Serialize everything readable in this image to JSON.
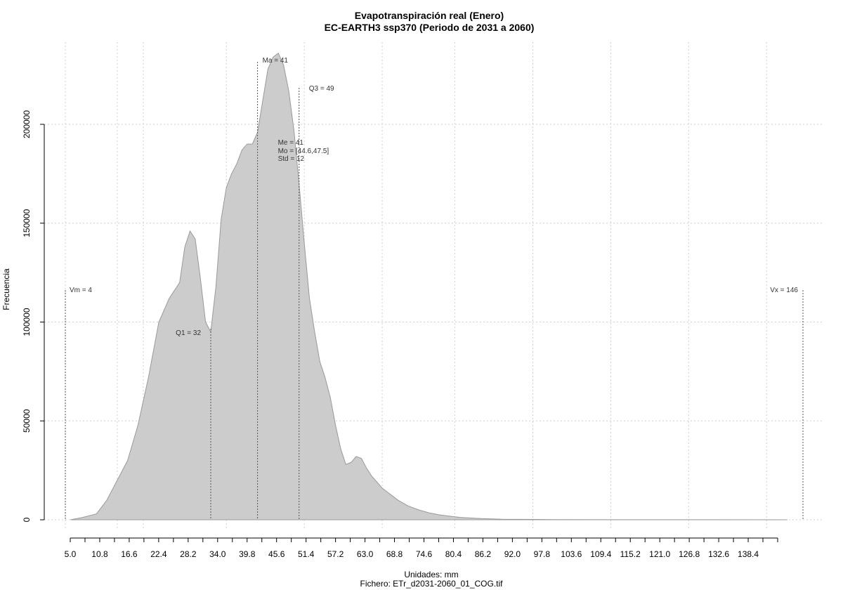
{
  "chart_data": {
    "type": "area",
    "title": "Evapotranspiración real (Enero)",
    "subtitle": "EC-EARTH3 ssp370 (Periodo de 2031 a 2060)",
    "xlabel": "Unidades: mm",
    "ylabel": "Frecuencia",
    "caption": "Fichero: ETr_d2031-2060_01_COG.tif",
    "xlim": [
      4,
      146
    ],
    "ylim": [
      0,
      230000
    ],
    "grid": true,
    "fill_color": "#cccccc",
    "line_color": "#999999",
    "x_tick_labels": [
      "5.0",
      "10.8",
      "16.6",
      "22.4",
      "28.2",
      "34.0",
      "39.8",
      "45.6",
      "51.4",
      "57.2",
      "63.0",
      "68.8",
      "74.6",
      "80.4",
      "86.2",
      "92.0",
      "97.8",
      "103.6",
      "109.4",
      "115.2",
      "121.0",
      "126.8",
      "132.6",
      "138.4"
    ],
    "y_ticks": [
      0,
      50000,
      100000,
      150000,
      200000
    ],
    "y_tick_labels": [
      "0",
      "50000",
      "100000",
      "150000",
      "200000"
    ],
    "x": [
      5,
      7,
      10,
      12,
      14,
      16,
      18,
      20,
      22,
      24,
      26,
      27,
      28,
      29,
      30,
      31,
      32,
      33,
      34,
      35,
      36,
      37,
      38,
      39,
      40,
      41,
      42,
      43,
      44,
      45,
      46,
      47,
      48,
      49,
      50,
      51,
      52,
      53,
      54,
      55,
      56,
      57,
      58,
      59,
      60,
      61,
      62,
      63,
      64,
      65,
      66,
      67,
      68,
      70,
      72,
      74,
      76,
      78,
      80,
      84,
      88,
      92,
      98,
      110,
      130,
      143
    ],
    "y": [
      0,
      1000,
      3000,
      10000,
      20000,
      30000,
      48000,
      72000,
      100000,
      112000,
      120000,
      138000,
      146000,
      142000,
      122000,
      100000,
      95000,
      118000,
      152000,
      168000,
      175000,
      180000,
      187000,
      190000,
      190000,
      196000,
      212000,
      228000,
      234000,
      236000,
      230000,
      217000,
      197000,
      170000,
      140000,
      112000,
      95000,
      80000,
      72000,
      62000,
      48000,
      36000,
      28000,
      29000,
      32000,
      31000,
      26000,
      22000,
      19000,
      16000,
      14000,
      12000,
      10000,
      7000,
      5000,
      3500,
      2500,
      1800,
      1200,
      600,
      300,
      200,
      100,
      50,
      20,
      0
    ],
    "annotations": [
      {
        "label": "Vm = 4",
        "x": 4
      },
      {
        "label": "Q1 = 32",
        "x": 32
      },
      {
        "label": "Ma = 41",
        "x": 41
      },
      {
        "label": "Me = 41",
        "x": 41
      },
      {
        "label": "Mo = [44.6,47.5]",
        "x": 46
      },
      {
        "label": "Std = 12",
        "x": 46
      },
      {
        "label": "Q3 = 49",
        "x": 49
      },
      {
        "label": "Vx = 146",
        "x": 146
      }
    ]
  }
}
